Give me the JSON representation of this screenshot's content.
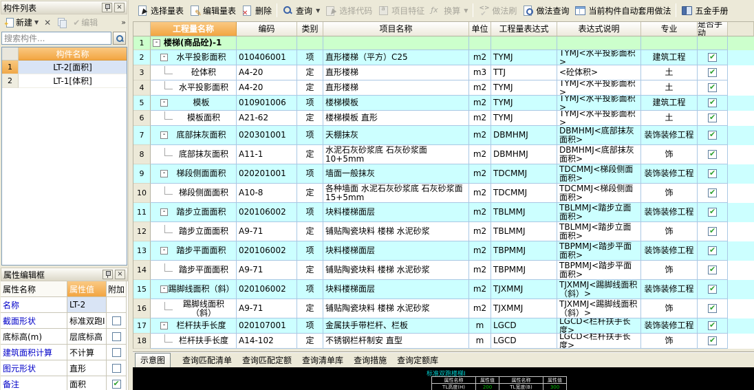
{
  "left_panel": {
    "component_list": {
      "title": "构件列表",
      "new_button": "新建",
      "edit_button": "编辑",
      "overflow_button": "»",
      "search_placeholder": "搜索构件...",
      "list_header": "构件名称",
      "rows": [
        {
          "num": "1",
          "name": "LT-2[面积]"
        },
        {
          "num": "2",
          "name": "LT-1[体积]"
        }
      ]
    },
    "property_editor": {
      "title": "属性编辑框",
      "headers": {
        "name": "属性名称",
        "value": "属性值",
        "extra": "附加"
      },
      "rows": [
        {
          "name": "名称",
          "value": "LT-2"
        },
        {
          "name": "截面形状",
          "value": "标准双跑I"
        },
        {
          "name": "底标高(m)",
          "value": "层底标高"
        },
        {
          "name": "建筑面积计算",
          "value": "不计算"
        },
        {
          "name": "图元形状",
          "value": "直形"
        },
        {
          "name": "备注",
          "value": "面积"
        }
      ]
    }
  },
  "toolbar": {
    "select_table": "选择量表",
    "edit_table": "编辑量表",
    "delete": "删除",
    "query": "查询",
    "select_code": "选择代码",
    "feature": "项目特征",
    "convert": "换算",
    "brush": "做法刷",
    "query_method": "做法查询",
    "auto_apply": "当前构件自动套用做法",
    "hardware_manual": "五金手册"
  },
  "grid": {
    "headers": {
      "name": "工程量名称",
      "code": "编码",
      "cat": "类别",
      "proj": "项目名称",
      "unit": "单位",
      "expr": "工程量表达式",
      "desc": "表达式说明",
      "prof": "专业",
      "manual": "是否手动"
    },
    "rows": [
      {
        "num": "1",
        "name": "楼梯(商品砼)-1",
        "code": "",
        "cat": "",
        "proj": "",
        "unit": "",
        "expr": "",
        "desc": "",
        "prof": ""
      },
      {
        "num": "2",
        "name": "水平投影面积",
        "code": "010406001",
        "cat": "项",
        "proj": "直形楼梯（平方）C25",
        "unit": "m2",
        "expr": "TYMJ",
        "desc": "TYMJ<水平投影面积>",
        "prof": "建筑工程"
      },
      {
        "num": "3",
        "name": "砼体积",
        "code": "A4-20",
        "cat": "定",
        "proj": "直形楼梯",
        "unit": "m3",
        "expr": "TTJ",
        "desc": "<砼体积>",
        "prof": "土"
      },
      {
        "num": "4",
        "name": "水平投影面积",
        "code": "A4-20",
        "cat": "定",
        "proj": "直形楼梯",
        "unit": "m2",
        "expr": "TYMJ",
        "desc": "TYMJ<水平投影面积>",
        "prof": "土"
      },
      {
        "num": "5",
        "name": "模板",
        "code": "010901006",
        "cat": "项",
        "proj": "楼梯模板",
        "unit": "m2",
        "expr": "TYMJ",
        "desc": "TYMJ<水平投影面积>",
        "prof": "建筑工程"
      },
      {
        "num": "6",
        "name": "模板面积",
        "code": "A21-62",
        "cat": "定",
        "proj": "楼梯模板 直形",
        "unit": "m2",
        "expr": "TYMJ",
        "desc": "TYMJ<水平投影面积>",
        "prof": "土"
      },
      {
        "num": "7",
        "name": "底部抹灰面积",
        "code": "020301001",
        "cat": "项",
        "proj": "天棚抹灰",
        "unit": "m2",
        "expr": "DBMHMJ",
        "desc": "DBMHMJ<底部抹灰面积>",
        "prof": "装饰装修工程"
      },
      {
        "num": "8",
        "name": "底部抹灰面积",
        "code": "A11-1",
        "cat": "定",
        "proj": "水泥石灰砂浆底 石灰砂浆面 10+5mm",
        "unit": "m2",
        "expr": "DBMHMJ",
        "desc": "DBMHMJ<底部抹灰面积>",
        "prof": "饰"
      },
      {
        "num": "9",
        "name": "梯段侧面面积",
        "code": "020201001",
        "cat": "项",
        "proj": "墙面一般抹灰",
        "unit": "m2",
        "expr": "TDCMMJ",
        "desc": "TDCMMJ<梯段侧面面积>",
        "prof": "装饰装修工程"
      },
      {
        "num": "10",
        "name": "梯段侧面面积",
        "code": "A10-8",
        "cat": "定",
        "proj": "各种墙面 水泥石灰砂浆底 石灰砂浆面 15+5mm",
        "unit": "m2",
        "expr": "TDCMMJ",
        "desc": "TDCMMJ<梯段侧面面积>",
        "prof": "饰"
      },
      {
        "num": "11",
        "name": "踏步立面面积",
        "code": "020106002",
        "cat": "项",
        "proj": "块料楼梯面层",
        "unit": "m2",
        "expr": "TBLMMJ",
        "desc": "TBLMMJ<踏步立面面积>",
        "prof": "装饰装修工程"
      },
      {
        "num": "12",
        "name": "踏步立面面积",
        "code": "A9-71",
        "cat": "定",
        "proj": "铺贴陶瓷块料 楼梯 水泥砂浆",
        "unit": "m2",
        "expr": "TBLMMJ",
        "desc": "TBLMMJ<踏步立面面积>",
        "prof": "饰"
      },
      {
        "num": "13",
        "name": "踏步平面面积",
        "code": "020106002",
        "cat": "项",
        "proj": "块料楼梯面层",
        "unit": "m2",
        "expr": "TBPMMJ",
        "desc": "TBPMMJ<踏步平面面积>",
        "prof": "装饰装修工程"
      },
      {
        "num": "14",
        "name": "踏步平面面积",
        "code": "A9-71",
        "cat": "定",
        "proj": "铺贴陶瓷块料 楼梯 水泥砂浆",
        "unit": "m2",
        "expr": "TBPMMJ",
        "desc": "TBPMMJ<踏步平面面积>",
        "prof": "饰"
      },
      {
        "num": "15",
        "name": "踢脚线面积（斜）",
        "code": "020106002",
        "cat": "项",
        "proj": "块料楼梯面层",
        "unit": "m2",
        "expr": "TJXMMJ",
        "desc": "TJXMMJ<踢脚线面积（斜）>",
        "prof": "装饰装修工程"
      },
      {
        "num": "16",
        "name": "踢脚线面积（斜）",
        "code": "A9-71",
        "cat": "定",
        "proj": "铺贴陶瓷块料 楼梯 水泥砂浆",
        "unit": "m2",
        "expr": "TJXMMJ",
        "desc": "TJXMMJ<踢脚线面积（斜）>",
        "prof": "饰"
      },
      {
        "num": "17",
        "name": "栏杆扶手长度",
        "code": "020107001",
        "cat": "项",
        "proj": "金属扶手带栏杆、栏板",
        "unit": "m",
        "expr": "LGCD",
        "desc": "LGCD<栏杆扶手长度>",
        "prof": "装饰装修工程"
      },
      {
        "num": "18",
        "name": "栏杆扶手长度",
        "code": "A14-102",
        "cat": "定",
        "proj": "不锈钢栏杆制安 直型",
        "unit": "m",
        "expr": "LGCD",
        "desc": "LGCD<栏杆扶手长度>",
        "prof": "饰"
      }
    ]
  },
  "bottom": {
    "active_tab": "示意图",
    "tabs": [
      "查询匹配清单",
      "查询匹配定额",
      "查询清单库",
      "查询措施",
      "查询定额库"
    ],
    "preview": {
      "title": "标准双跑楼梯I",
      "attr_headers": [
        "属性名称",
        "属性值",
        "属性名称",
        "属性值"
      ],
      "attr_row": [
        "TL高度(H)",
        "200",
        "TL宽度(B)",
        "300"
      ]
    }
  },
  "colors": {
    "header_orange": "#F2A541",
    "row_cyan": "#CCFFFF",
    "group_green": "#CCFFCC",
    "check_green": "#2EA12E",
    "property_name_blue": "#0000C8"
  }
}
